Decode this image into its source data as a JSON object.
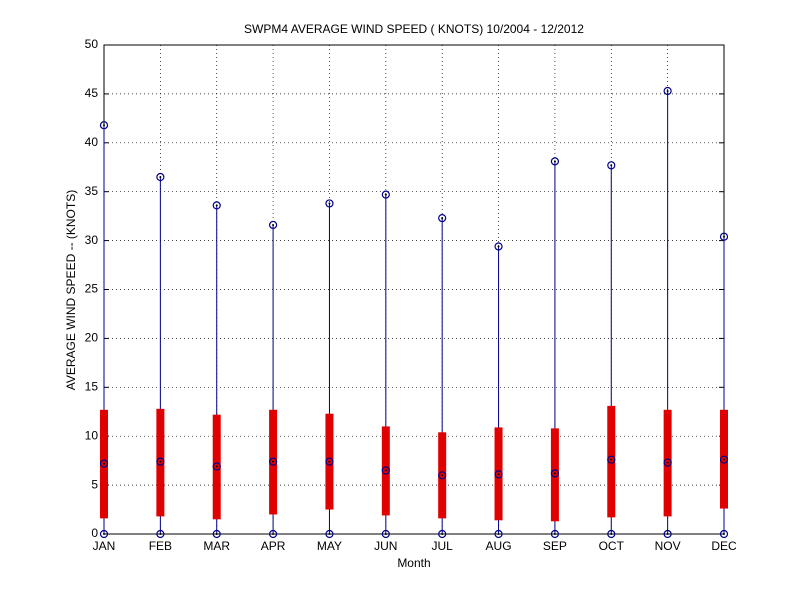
{
  "chart_data": {
    "type": "range",
    "title": "SWPM4  AVERAGE WIND SPEED ( KNOTS) 10/2004 - 12/2012",
    "x_label": "Month",
    "y_label": "AVERAGE WIND SPEED -- (KNOTS)",
    "categories": [
      "JAN",
      "FEB",
      "MAR",
      "APR",
      "MAY",
      "JUN",
      "JUL",
      "AUG",
      "SEP",
      "OCT",
      "NOV",
      "DEC"
    ],
    "high": [
      41.8,
      36.5,
      33.6,
      31.6,
      33.8,
      34.7,
      32.3,
      29.4,
      38.1,
      37.7,
      45.3,
      30.4
    ],
    "upper": [
      12.7,
      12.8,
      12.2,
      12.7,
      12.3,
      11.0,
      10.4,
      10.9,
      10.8,
      13.1,
      12.7,
      12.7
    ],
    "mean": [
      7.2,
      7.4,
      6.9,
      7.4,
      7.4,
      6.5,
      6.0,
      6.1,
      6.2,
      7.6,
      7.3,
      7.6
    ],
    "lower": [
      1.6,
      1.8,
      1.5,
      2.0,
      2.5,
      1.9,
      1.6,
      1.4,
      1.3,
      1.7,
      1.8,
      2.6
    ],
    "low": [
      0,
      0,
      0,
      0,
      0,
      0,
      0,
      0,
      0,
      0,
      0,
      0
    ],
    "line_color": "#00008b",
    "bar_color": "#e00000",
    "ylim": [
      0,
      50
    ],
    "yticks": [
      0,
      5,
      10,
      15,
      20,
      25,
      30,
      35,
      40,
      45,
      50
    ],
    "grid": true
  }
}
